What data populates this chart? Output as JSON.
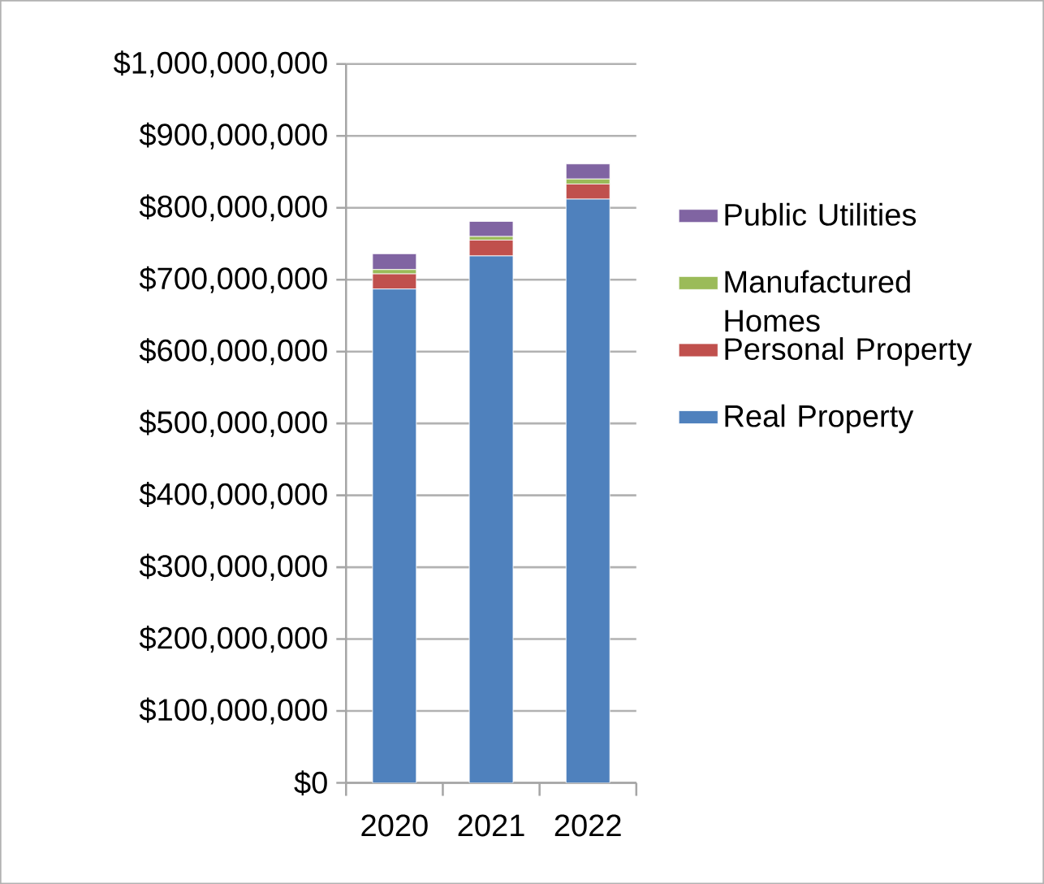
{
  "chart_data": {
    "type": "bar",
    "stacked": true,
    "categories": [
      "2020",
      "2021",
      "2022"
    ],
    "series": [
      {
        "name": "Real Property",
        "color": "#4f81bd",
        "values": [
          687000000,
          733000000,
          812000000
        ]
      },
      {
        "name": "Personal Property",
        "color": "#c0504d",
        "values": [
          21000000,
          22000000,
          21000000
        ]
      },
      {
        "name": "Manufactured Homes",
        "color": "#9bbb59",
        "values": [
          6000000,
          5000000,
          7000000
        ]
      },
      {
        "name": "Public Utilities",
        "color": "#8064a2",
        "values": [
          22000000,
          21000000,
          21000000
        ]
      }
    ],
    "ylim": [
      0,
      1000000000
    ],
    "yticks": [
      {
        "value": 0,
        "label": "$0"
      },
      {
        "value": 100000000,
        "label": "$100,000,000"
      },
      {
        "value": 200000000,
        "label": "$200,000,000"
      },
      {
        "value": 300000000,
        "label": "$300,000,000"
      },
      {
        "value": 400000000,
        "label": "$400,000,000"
      },
      {
        "value": 500000000,
        "label": "$500,000,000"
      },
      {
        "value": 600000000,
        "label": "$600,000,000"
      },
      {
        "value": 700000000,
        "label": "$700,000,000"
      },
      {
        "value": 800000000,
        "label": "$800,000,000"
      },
      {
        "value": 900000000,
        "label": "$900,000,000"
      },
      {
        "value": 1000000000,
        "label": "$1,000,000,000"
      }
    ],
    "grid": "y",
    "legend": "right"
  }
}
